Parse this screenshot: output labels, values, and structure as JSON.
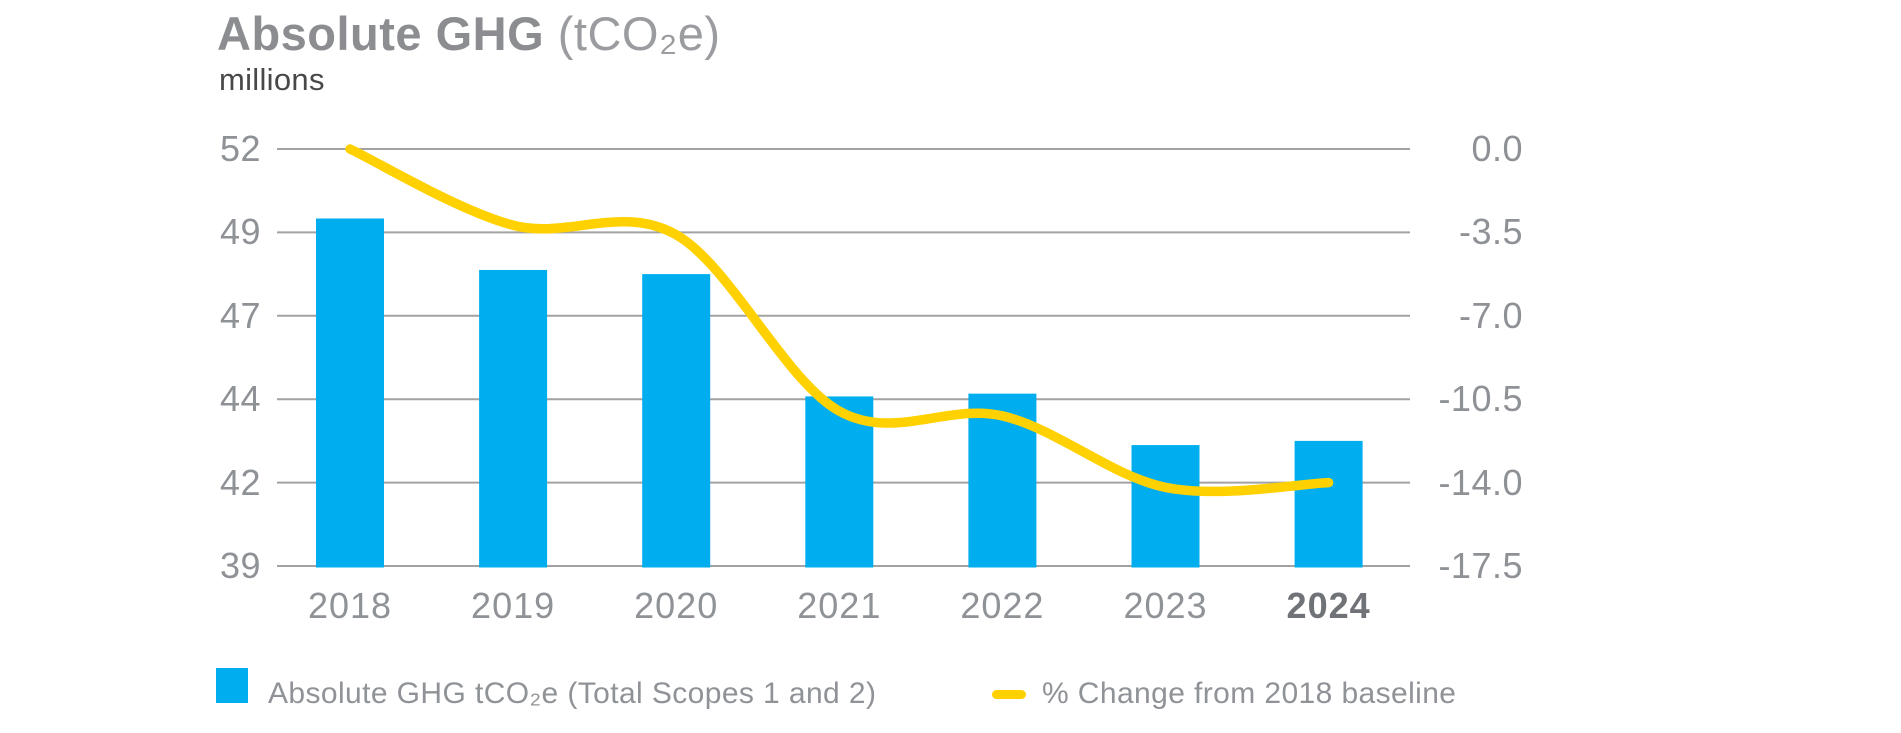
{
  "header": {
    "title_main": "Absolute GHG",
    "title_unit": "(tCO₂e)",
    "subtitle": "millions"
  },
  "chart_data": {
    "type": "bar+line combo",
    "title": "Absolute GHG (tCO₂e)",
    "ylabel_left": "millions",
    "categories": [
      "2018",
      "2019",
      "2020",
      "2021",
      "2022",
      "2023",
      "2024"
    ],
    "series": [
      {
        "name": "Absolute GHG tCO₂e (Total Scopes 1 and 2)",
        "type": "bar",
        "axis": "left",
        "unit": "million tCO₂e",
        "values": [
          49.5,
          48.1,
          48.0,
          44.1,
          44.2,
          42.9,
          43.0
        ]
      },
      {
        "name": "% Change from 2018 baseline",
        "type": "line",
        "axis": "right",
        "unit": "%",
        "values": [
          0.0,
          -3.2,
          -3.6,
          -11.0,
          -11.2,
          -14.2,
          -14.0
        ]
      }
    ],
    "left_axis": {
      "tick_labels": [
        "52",
        "49",
        "47",
        "44",
        "42",
        "39"
      ],
      "tick_values": [
        52,
        49,
        47,
        44,
        42,
        39
      ],
      "note": "ticks evenly spaced on screen"
    },
    "right_axis": {
      "tick_labels": [
        "0.0",
        "-3.5",
        "-7.0",
        "-10.5",
        "-14.0",
        "-17.5"
      ],
      "tick_values": [
        0,
        -3.5,
        -7,
        -10.5,
        -14,
        -17.5
      ]
    },
    "grid": true,
    "legend_position": "bottom",
    "highlighted_category": "2024"
  },
  "legend": {
    "bar_label": "Absolute GHG tCO₂e (Total Scopes 1 and 2)",
    "line_label": "% Change from 2018 baseline"
  },
  "colors": {
    "bar": "#00AEEF",
    "line": "#FFD100",
    "grid": "#A2A2A2",
    "axis_text": "#8E9196",
    "subtitle_text": "#48484B",
    "title_text": "#8B8D90",
    "highlight_year_text": "#6F7276"
  }
}
